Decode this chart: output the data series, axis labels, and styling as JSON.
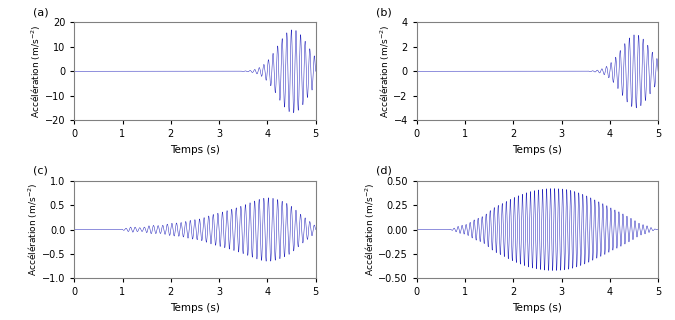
{
  "title_a": "(a)",
  "title_b": "(b)",
  "title_c": "(c)",
  "title_d": "(d)",
  "xlabel": "Temps (s)",
  "xlim": [
    0,
    5
  ],
  "ylim_a": [
    -20,
    20
  ],
  "ylim_b": [
    -4,
    4
  ],
  "ylim_c": [
    -1,
    1
  ],
  "ylim_d": [
    -0.5,
    0.5
  ],
  "yticks_a": [
    -20,
    -10,
    0,
    10,
    20
  ],
  "yticks_b": [
    -4,
    -2,
    0,
    2,
    4
  ],
  "yticks_c": [
    -1.0,
    -0.5,
    0.0,
    0.5,
    1.0
  ],
  "yticks_d": [
    -0.5,
    -0.25,
    0.0,
    0.25,
    0.5
  ],
  "xticks": [
    0,
    1,
    2,
    3,
    4,
    5
  ],
  "line_color": "#2020bb",
  "bg_color": "#ffffff",
  "fs": 2000,
  "t_end": 5.0,
  "seed": 7
}
